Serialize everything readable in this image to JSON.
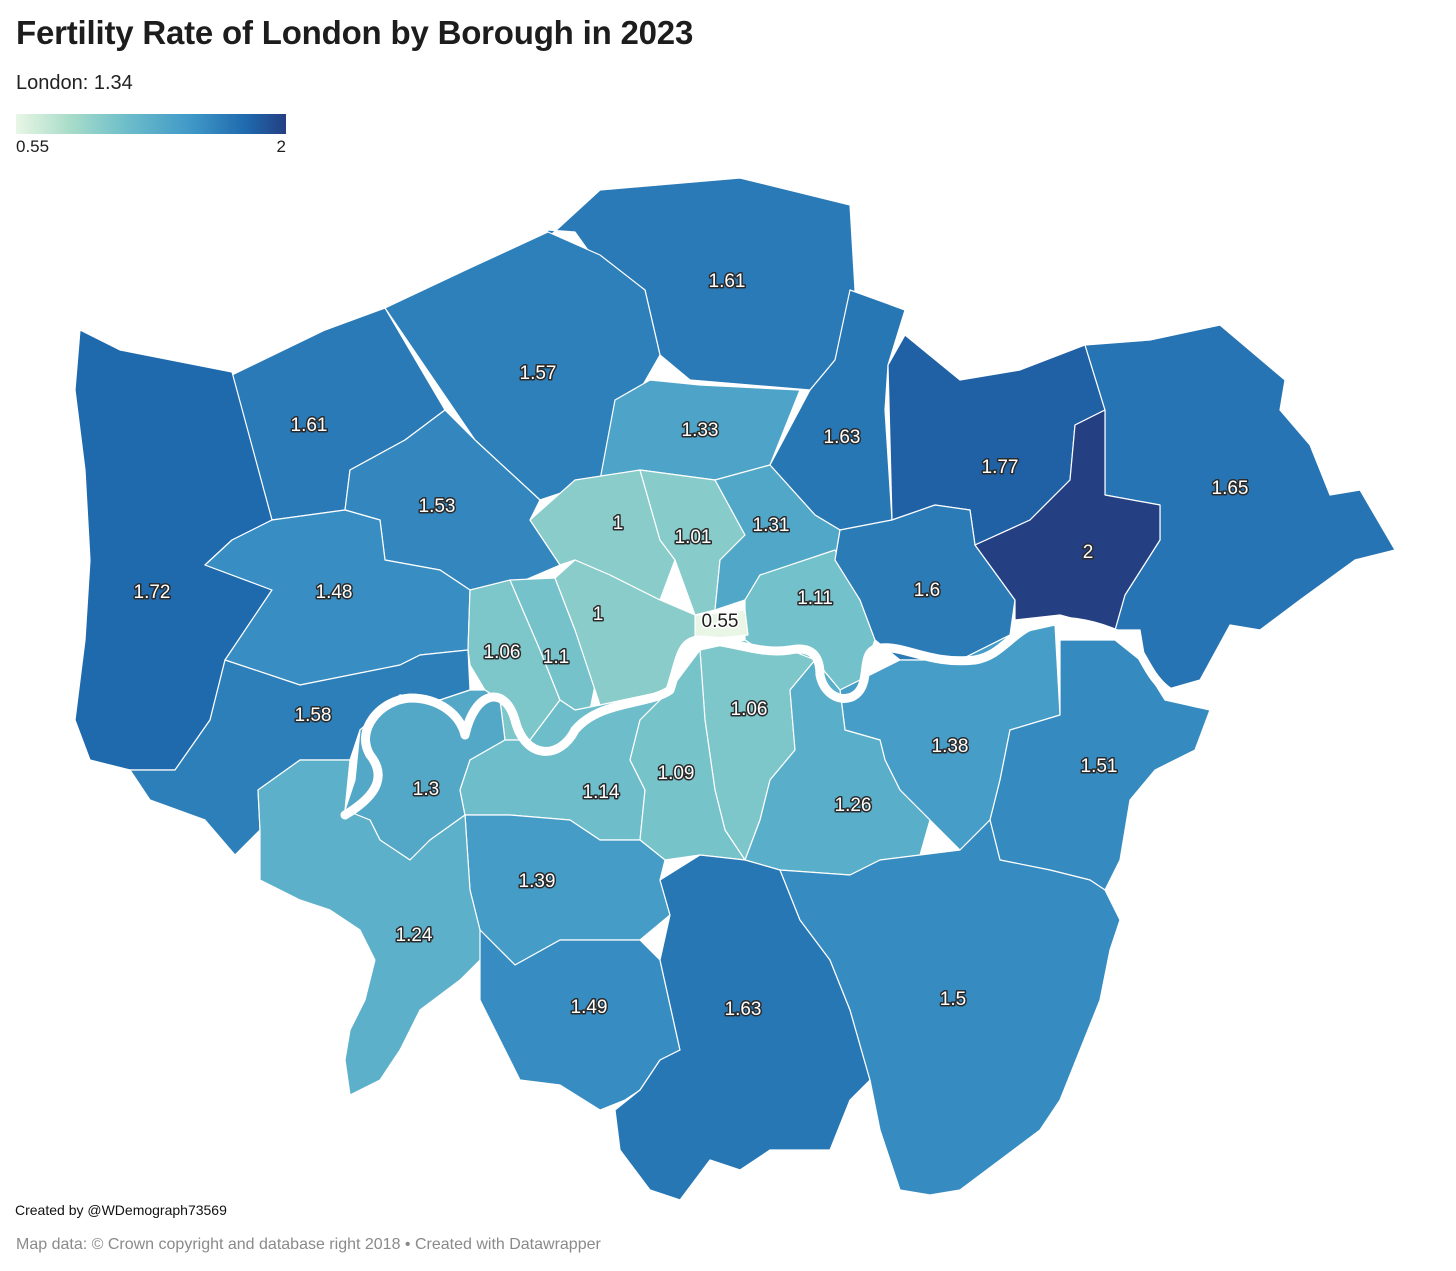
{
  "title": "Fertility Rate of London by Borough in 2023",
  "subtitle": "London: 1.34",
  "legend": {
    "min_label": "0.55",
    "max_label": "2",
    "min": 0.55,
    "max": 2,
    "colors": [
      "#e9f6e6",
      "#a9dcc9",
      "#6fbfca",
      "#3f98c7",
      "#1f6aae",
      "#253f83"
    ]
  },
  "chart_data": {
    "type": "choropleth",
    "value_labels": [
      "1.61",
      "1.57",
      "1.61",
      "1.72",
      "1.33",
      "1.63",
      "1.77",
      "1.65",
      "1.53",
      "1.48",
      "1",
      "1.01",
      "1.31",
      "1.11",
      "1.6",
      "2",
      "0.55",
      "1.06",
      "1.1",
      "1",
      "1.58",
      "1.06",
      "1.38",
      "1.51",
      "1.3",
      "1.14",
      "1.09",
      "1.26",
      "1.39",
      "1.24",
      "1.49",
      "1.63",
      "1.5"
    ]
  },
  "footer": {
    "credit": "Created by @WDemograph73569",
    "source": "Map data: © Crown copyright and database right 2018  • Created with Datawrapper"
  }
}
